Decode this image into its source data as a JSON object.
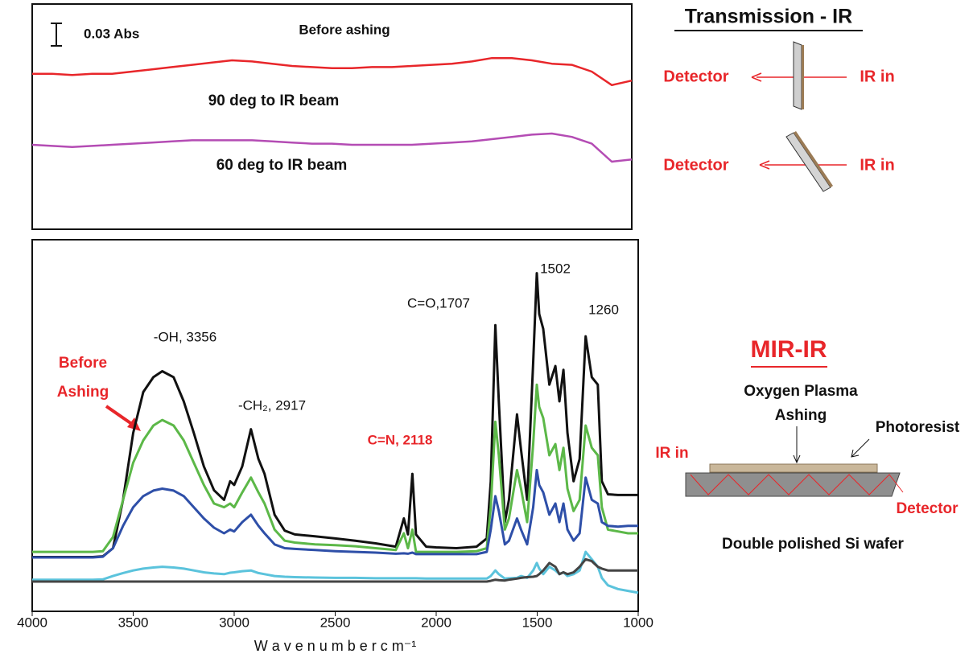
{
  "chart_data": [
    {
      "type": "line",
      "x": [
        4000,
        3900,
        3800,
        3700,
        3600,
        3500,
        3400,
        3300,
        3200,
        3100,
        3000,
        2900,
        2800,
        2700,
        2600,
        2500,
        2400,
        2300,
        2200,
        2100,
        2000,
        1900,
        1800,
        1700,
        1600,
        1500,
        1400,
        1300,
        1200,
        1100,
        1000
      ],
      "xlim": [
        4000,
        1000
      ],
      "ylim": [
        0,
        100
      ],
      "series": [
        {
          "color": "#e8262a",
          "values": [
            69,
            69,
            68.5,
            69,
            69,
            70,
            71,
            72,
            73,
            74,
            75,
            74.5,
            73.5,
            72.5,
            72,
            71.5,
            71.5,
            72,
            72,
            72.5,
            73,
            73.5,
            74.5,
            76,
            76,
            75,
            73.5,
            73,
            70,
            64,
            66
          ]
        },
        {
          "color": "#b44cb4",
          "values": [
            37.5,
            37,
            36.5,
            37,
            37.5,
            38,
            38.5,
            39,
            39.5,
            39.5,
            39.5,
            39.5,
            39,
            38.5,
            38,
            38,
            37.5,
            37.5,
            37.5,
            37.5,
            38,
            38.5,
            39,
            40,
            41,
            42,
            42.5,
            41,
            38,
            30,
            31
          ]
        }
      ],
      "annotations": [
        "0.03 Abs",
        "Before ashing",
        "90 deg to IR beam",
        "60 deg to IR beam"
      ]
    },
    {
      "type": "line",
      "xlabel": "W a v e n u m b e r  c m⁻¹",
      "x": [
        4000,
        3900,
        3800,
        3700,
        3650,
        3600,
        3550,
        3500,
        3450,
        3400,
        3356,
        3300,
        3250,
        3200,
        3150,
        3100,
        3050,
        3020,
        3000,
        2960,
        2917,
        2880,
        2850,
        2800,
        2750,
        2700,
        2600,
        2500,
        2400,
        2300,
        2200,
        2160,
        2140,
        2118,
        2100,
        2050,
        2000,
        1900,
        1800,
        1750,
        1730,
        1707,
        1690,
        1660,
        1640,
        1600,
        1580,
        1550,
        1520,
        1502,
        1490,
        1470,
        1440,
        1410,
        1390,
        1370,
        1350,
        1320,
        1290,
        1260,
        1230,
        1200,
        1180,
        1150,
        1100,
        1050,
        1000
      ],
      "xlim": [
        4000,
        1000
      ],
      "ylim": [
        0,
        100
      ],
      "xticks": [
        4000,
        3500,
        3000,
        2500,
        2000,
        1500,
        1000
      ],
      "series": [
        {
          "color": "#111111",
          "values": [
            14.6,
            14.6,
            14.6,
            14.6,
            14.8,
            17,
            30,
            48,
            59,
            63,
            64.6,
            63,
            56.5,
            48,
            39,
            32.6,
            30,
            35,
            34,
            39,
            49,
            41,
            37,
            26,
            21.7,
            20.7,
            20.2,
            19.6,
            19,
            18.3,
            17.4,
            25,
            20.7,
            37,
            20.7,
            17.4,
            17.2,
            17,
            17.4,
            19.6,
            35,
            77,
            56.5,
            24,
            30,
            53,
            43.5,
            30,
            67,
            91,
            80,
            76,
            61,
            66,
            56.5,
            65,
            48,
            35,
            41,
            74,
            63,
            61,
            35,
            31.5,
            31.3,
            31.3,
            31.3
          ]
        },
        {
          "color": "#5cb848",
          "values": [
            16,
            16,
            16,
            16,
            16.2,
            20,
            30,
            40,
            46,
            50,
            51.5,
            50,
            46,
            40,
            34,
            29,
            28,
            29,
            28,
            32,
            36,
            32,
            29,
            22,
            19,
            18.5,
            18,
            17.8,
            17.5,
            17,
            16.5,
            21,
            17,
            22,
            16,
            16,
            16,
            16,
            16.2,
            17,
            28,
            51,
            42,
            22,
            25,
            38,
            33,
            24,
            45,
            61,
            55,
            52,
            42,
            45,
            38,
            44,
            33,
            27,
            30,
            50,
            44,
            42,
            28,
            22,
            21.5,
            21,
            21
          ]
        },
        {
          "color": "#2e4fa8",
          "values": [
            14.5,
            14.5,
            14.5,
            14.5,
            14.7,
            17,
            23,
            28,
            31,
            32.5,
            33,
            32.5,
            31,
            28,
            25,
            22.5,
            21,
            22,
            21.5,
            24,
            26,
            23,
            21,
            18,
            17,
            16.8,
            16.5,
            16.2,
            16,
            15.8,
            15.5,
            15.6,
            15.5,
            15.8,
            15.4,
            15.4,
            15.4,
            15.4,
            15.4,
            16,
            22,
            31,
            27,
            18,
            19,
            25,
            22,
            18,
            28,
            38,
            34,
            32,
            26,
            29,
            24,
            29,
            22,
            19,
            21,
            36,
            30,
            29,
            24,
            23,
            22.8,
            23,
            23
          ]
        },
        {
          "color": "#5bc3dc",
          "values": [
            8.5,
            8.5,
            8.5,
            8.5,
            8.6,
            9.5,
            10.3,
            11,
            11.5,
            11.8,
            12,
            11.8,
            11.5,
            11,
            10.5,
            10.2,
            10,
            10.4,
            10.5,
            10.8,
            11,
            10.3,
            10,
            9.5,
            9.3,
            9.2,
            9.1,
            9,
            9,
            8.9,
            8.9,
            8.9,
            8.9,
            8.9,
            8.9,
            8.8,
            8.8,
            8.8,
            8.8,
            8.8,
            9.5,
            11,
            10,
            8.8,
            8.9,
            9,
            9.5,
            9,
            11,
            13,
            11.5,
            10,
            12,
            11,
            10,
            10.5,
            9.5,
            10,
            11,
            16,
            14,
            12,
            9,
            7,
            6,
            5.5,
            5
          ]
        },
        {
          "color": "#444444",
          "values": [
            8,
            8,
            8,
            8,
            8,
            8,
            8,
            8,
            8,
            8,
            8,
            8,
            8,
            8,
            8,
            8,
            8,
            8,
            8,
            8,
            8,
            8,
            8,
            8,
            8,
            8,
            8,
            8,
            8,
            8,
            8,
            8,
            8,
            8,
            8,
            8,
            8,
            8,
            8,
            8,
            8.2,
            8.5,
            8.4,
            8.3,
            8.5,
            8.8,
            9,
            9.2,
            9.3,
            9.5,
            10,
            11,
            13,
            12,
            10,
            10.5,
            10,
            10.5,
            12,
            14,
            13.5,
            12,
            11.5,
            11,
            11,
            11,
            11
          ]
        }
      ],
      "annotations": [
        {
          "text": "-OH, 3356",
          "color": "#111111"
        },
        {
          "text": "-CH₂, 2917",
          "color": "#111111"
        },
        {
          "text": "C=O,1707",
          "color": "#111111"
        },
        {
          "text": "1502",
          "color": "#111111"
        },
        {
          "text": "1260",
          "color": "#111111"
        },
        {
          "text": "C=N, 2118",
          "color": "#e8262a"
        },
        {
          "text": "Before",
          "color": "#e8262a"
        },
        {
          "text": "Ashing",
          "color": "#e8262a"
        }
      ]
    }
  ],
  "diagrams": {
    "transmission": {
      "title": "Transmission - IR",
      "rows": [
        {
          "left": "Detector",
          "right": "IR in"
        },
        {
          "left": "Detector",
          "right": "IR in"
        }
      ]
    },
    "mir": {
      "title": "MIR-IR",
      "process": "Oxygen Plasma",
      "process2": "Ashing",
      "layer": "Photoresist",
      "input": "IR in",
      "output": "Detector",
      "substrate": "Double polished Si wafer"
    }
  }
}
